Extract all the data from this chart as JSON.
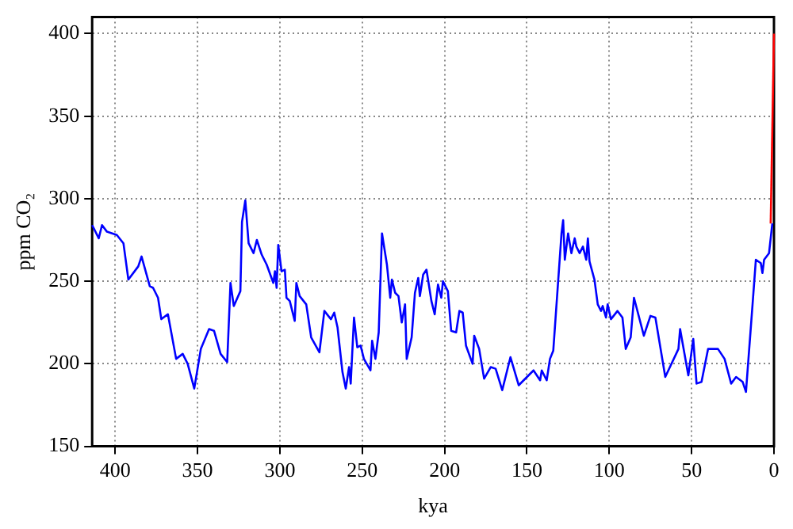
{
  "chart_data": {
    "type": "line",
    "xlabel": "kya",
    "ylabel": "ppm CO₂",
    "xlim": [
      414,
      0
    ],
    "xticks": [
      400,
      350,
      300,
      250,
      200,
      150,
      100,
      50,
      0
    ],
    "ylim": [
      150,
      410
    ],
    "yticks": [
      150,
      200,
      250,
      300,
      350,
      400
    ],
    "grid": true,
    "legend": false,
    "marker": "none",
    "line_style": "solid",
    "series": [
      {
        "color": "#0000ff",
        "x": [
          414,
          410,
          408,
          405,
          399,
          395,
          392,
          386,
          384,
          379,
          377,
          374,
          372,
          368,
          363,
          359,
          356,
          352,
          348,
          343,
          340,
          336,
          332,
          330,
          328,
          324,
          323,
          321,
          319,
          316,
          314,
          311,
          308,
          304,
          303,
          302,
          301,
          299,
          297,
          296,
          294,
          291,
          290,
          288,
          284,
          281,
          276,
          273,
          269,
          267,
          265,
          262,
          260,
          258,
          257,
          255,
          253,
          251,
          249,
          245,
          244,
          242,
          240,
          238,
          235,
          233,
          232,
          230,
          228,
          226,
          224,
          223,
          220,
          218,
          216,
          215,
          213,
          211,
          208,
          206,
          204,
          202,
          201,
          198,
          196,
          193,
          191,
          189,
          187,
          183,
          182,
          179,
          176,
          172,
          169,
          165,
          160,
          155,
          152,
          146,
          142,
          141,
          138,
          136,
          134,
          129,
          128,
          127,
          125,
          123,
          121,
          120,
          118,
          116,
          114,
          113,
          112,
          109,
          107,
          105,
          104,
          102,
          101,
          99,
          95,
          92,
          90,
          87,
          85,
          79,
          75,
          72,
          66,
          58,
          57,
          52,
          49,
          47,
          44,
          40,
          34,
          30,
          26,
          23,
          19,
          17,
          13,
          11,
          8,
          7,
          6,
          3,
          1
        ],
        "values": [
          284,
          276,
          284,
          280,
          278,
          273,
          251,
          259,
          265,
          247,
          246,
          240,
          227,
          230,
          203,
          206,
          200,
          185,
          209,
          221,
          220,
          206,
          201,
          249,
          235,
          244,
          286,
          299,
          273,
          267,
          275,
          266,
          260,
          249,
          256,
          246,
          272,
          256,
          257,
          240,
          238,
          226,
          249,
          241,
          236,
          216,
          207,
          232,
          227,
          231,
          222,
          195,
          185,
          198,
          188,
          228,
          210,
          211,
          203,
          196,
          214,
          203,
          219,
          279,
          260,
          240,
          251,
          243,
          241,
          225,
          236,
          203,
          216,
          243,
          252,
          241,
          254,
          257,
          238,
          230,
          248,
          240,
          250,
          244,
          220,
          219,
          232,
          231,
          211,
          200,
          217,
          209,
          191,
          198,
          197,
          184,
          204,
          187,
          190,
          196,
          190,
          196,
          190,
          203,
          208,
          279,
          287,
          263,
          279,
          267,
          276,
          271,
          267,
          271,
          263,
          276,
          262,
          251,
          236,
          232,
          235,
          228,
          236,
          227,
          232,
          228,
          209,
          216,
          240,
          217,
          229,
          228,
          192,
          209,
          221,
          193,
          215,
          188,
          189,
          209,
          209,
          203,
          188,
          192,
          189,
          183,
          236,
          263,
          261,
          255,
          263,
          267,
          285
        ]
      },
      {
        "color": "#ff0000",
        "x": [
          2,
          0
        ],
        "values": [
          285,
          400
        ]
      }
    ]
  }
}
